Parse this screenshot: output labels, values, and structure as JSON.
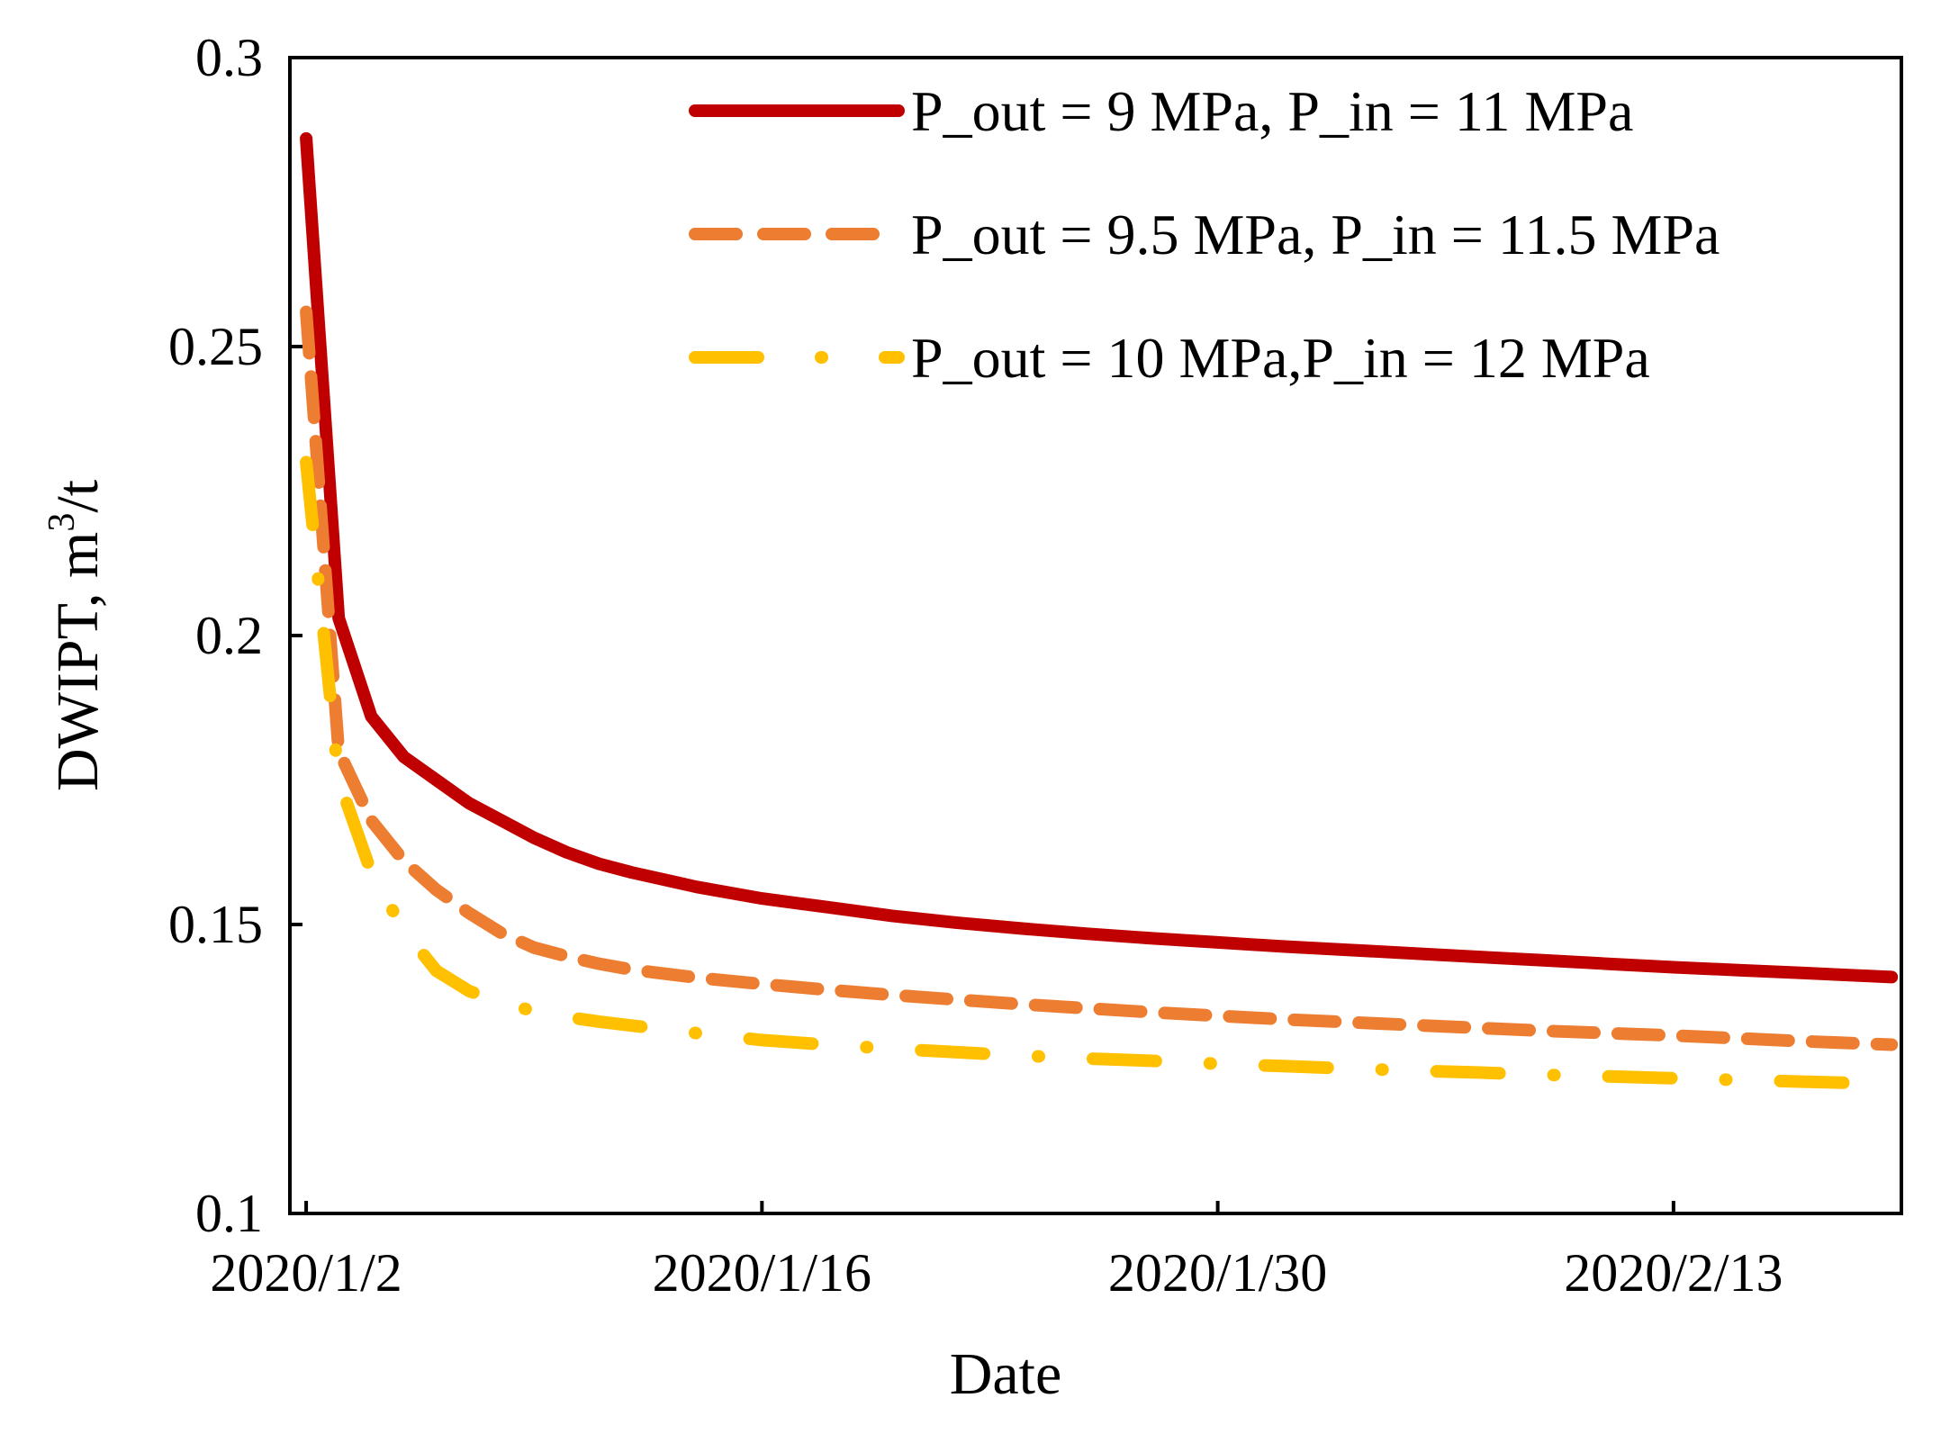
{
  "chart_data": {
    "type": "line",
    "title": "",
    "xlabel": "Date",
    "ylabel": "DWIPT, m",
    "ylabel_superscript": "3",
    "ylabel_suffix": "/t",
    "ylim": [
      0.1,
      0.3
    ],
    "y_ticks": [
      0.1,
      0.15,
      0.2,
      0.25,
      0.3
    ],
    "y_tick_labels": [
      "0.1",
      "0.15",
      "0.2",
      "0.25",
      "0.3"
    ],
    "x_unit": "days since 2020/1/2",
    "xlim": [
      -0.5,
      49
    ],
    "x_ticks": [
      0,
      14,
      28,
      42
    ],
    "x_tick_labels": [
      "2020/1/2",
      "2020/1/16",
      "2020/1/30",
      "2020/2/13"
    ],
    "legend_position": "top-right",
    "x": [
      0,
      1,
      2,
      3,
      4,
      5,
      6,
      7,
      8,
      9,
      10,
      12,
      14,
      16,
      18,
      20,
      22,
      24,
      26,
      28,
      30,
      32,
      34,
      36,
      38,
      40,
      42,
      44,
      46,
      48.7
    ],
    "series": [
      {
        "name": "P_out = 9 MPa, P_in = 11 MPa",
        "color": "#c00000",
        "style": "solid",
        "values": [
          0.286,
          0.203,
          0.186,
          0.179,
          0.175,
          0.171,
          0.168,
          0.165,
          0.1625,
          0.1605,
          0.159,
          0.1565,
          0.1545,
          0.153,
          0.1515,
          0.1503,
          0.1493,
          0.1484,
          0.1476,
          0.1469,
          0.1462,
          0.1456,
          0.145,
          0.1444,
          0.1438,
          0.1432,
          0.1426,
          0.1421,
          0.1416,
          0.1409
        ]
      },
      {
        "name": "P_out = 9.5 MPa, P_in = 11.5 MPa",
        "color": "#ed7d31",
        "style": "dashed",
        "values": [
          0.256,
          0.18,
          0.168,
          0.161,
          0.156,
          0.152,
          0.1485,
          0.146,
          0.1445,
          0.1432,
          0.1422,
          0.1408,
          0.1397,
          0.1387,
          0.1378,
          0.137,
          0.1362,
          0.1355,
          0.1348,
          0.1342,
          0.1336,
          0.1331,
          0.1326,
          0.1321,
          0.1316,
          0.1312,
          0.1308,
          0.1303,
          0.1298,
          0.1292
        ]
      },
      {
        "name": "P_out = 10 MPa,P_in = 12 MPa",
        "color": "#ffc000",
        "style": "dash-dot",
        "values": [
          0.23,
          0.175,
          0.159,
          0.149,
          0.142,
          0.1385,
          0.1365,
          0.135,
          0.134,
          0.1332,
          0.1325,
          0.1312,
          0.13,
          0.1292,
          0.1285,
          0.1279,
          0.1273,
          0.1268,
          0.1264,
          0.1259,
          0.1255,
          0.1251,
          0.1247,
          0.1244,
          0.124,
          0.1237,
          0.1234,
          0.1231,
          0.1228,
          0.1224
        ]
      }
    ]
  }
}
